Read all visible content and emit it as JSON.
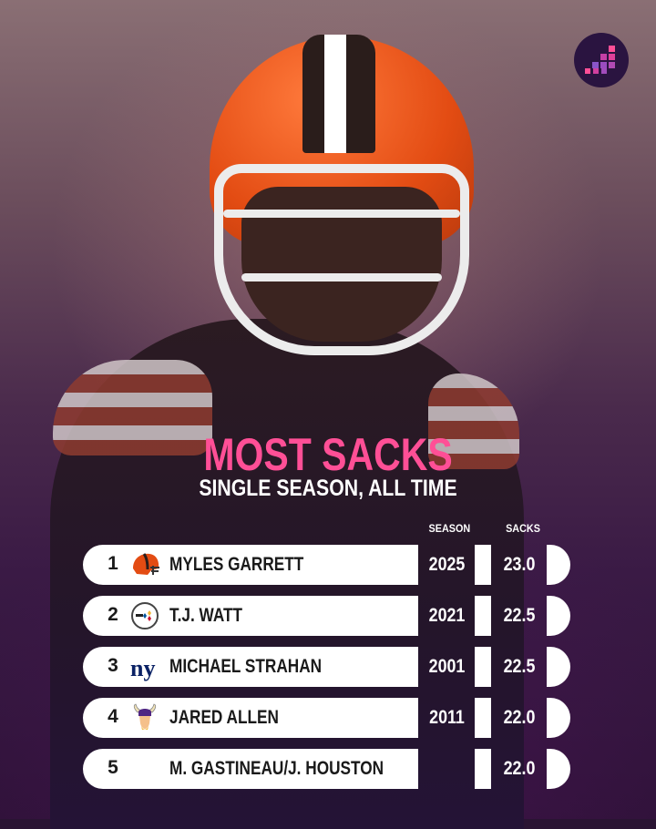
{
  "header": {
    "title": "MOST SACKS",
    "subtitle": "SINGLE SEASON, ALL TIME"
  },
  "columns": {
    "season": "SEASON",
    "sacks": "SACKS"
  },
  "colors": {
    "accent": "#ff4f96",
    "row_bg": "#ffffff",
    "background": "#2d1237"
  },
  "rows": [
    {
      "rank": "1",
      "team_icon": "browns-helmet-icon",
      "name": "MYLES GARRETT",
      "season": "2025",
      "sacks": "23.0"
    },
    {
      "rank": "2",
      "team_icon": "steelers-logo-icon",
      "name": "T.J. WATT",
      "season": "2021",
      "sacks": "22.5"
    },
    {
      "rank": "3",
      "team_icon": "giants-logo-icon",
      "name": "MICHAEL STRAHAN",
      "season": "2001",
      "sacks": "22.5"
    },
    {
      "rank": "4",
      "team_icon": "vikings-logo-icon",
      "name": "JARED ALLEN",
      "season": "2011",
      "sacks": "22.0"
    },
    {
      "rank": "5",
      "team_icon": "",
      "name": "M. GASTINEAU/J. HOUSTON",
      "season": "",
      "sacks": "22.0"
    }
  ]
}
